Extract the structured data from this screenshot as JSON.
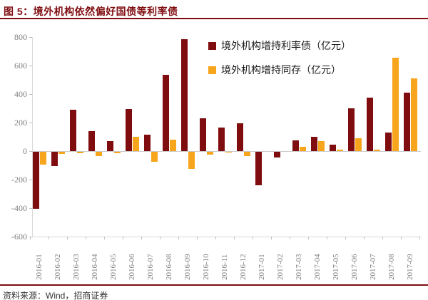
{
  "header": {
    "title": "图 5：境外机构依然偏好国债等利率债"
  },
  "footer": {
    "source": "资料来源：Wind，招商证券"
  },
  "colors": {
    "accent_dark_red": "#7F0D10",
    "series_rate_bond": "#7F0D10",
    "series_ncd": "#F7A51C",
    "axis_text": "#808080",
    "grid": "#d9d9d9"
  },
  "chart_data": {
    "type": "bar",
    "title": "图 5：境外机构依然偏好国债等利率债",
    "xlabel": "",
    "ylabel": "",
    "unit": "亿元",
    "categories": [
      "2016-01",
      "2016-02",
      "2016-03",
      "2016-04",
      "2016-05",
      "2016-06",
      "2016-07",
      "2016-08",
      "2016-09",
      "2016-10",
      "2016-11",
      "2016-12",
      "2017-01",
      "2017-02",
      "2017-03",
      "2017-04",
      "2017-05",
      "2017-06",
      "2017-07",
      "2017-08",
      "2017-09"
    ],
    "series": [
      {
        "name": "境外机构增持利率债（亿元）",
        "color": "#7F0D10",
        "values": [
          -400,
          -100,
          290,
          140,
          70,
          295,
          115,
          535,
          785,
          230,
          165,
          195,
          -235,
          -40,
          75,
          100,
          45,
          300,
          375,
          130,
          410
        ]
      },
      {
        "name": "境外机构增持同存（亿元）",
        "color": "#F7A51C",
        "values": [
          -90,
          -15,
          -10,
          -30,
          -10,
          100,
          -70,
          80,
          -120,
          -20,
          -5,
          -30,
          0,
          0,
          30,
          70,
          10,
          90,
          10,
          655,
          510
        ]
      }
    ],
    "ylim": [
      -600,
      800
    ],
    "yticks": [
      800,
      600,
      400,
      200,
      0,
      -200,
      -400,
      -600
    ],
    "grid": "zero-line-only",
    "legend_position": "top-right"
  }
}
